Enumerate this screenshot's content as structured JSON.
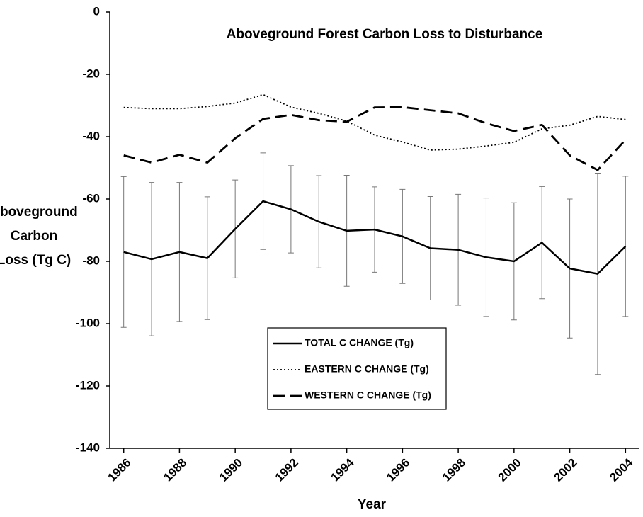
{
  "chart_data": {
    "type": "line",
    "title": "Aboveground Forest Carbon Loss to Disturbance",
    "x_label": "Year",
    "y_label": [
      "Aboveground",
      "Carbon",
      "Loss (Tg C)"
    ],
    "x": [
      1986,
      1987,
      1988,
      1989,
      1990,
      1991,
      1992,
      1993,
      1994,
      1995,
      1996,
      1997,
      1998,
      1999,
      2000,
      2001,
      2002,
      2003,
      2004
    ],
    "xlim": [
      1985.5,
      2004.5
    ],
    "xticks": [
      1986,
      1988,
      1990,
      1992,
      1994,
      1996,
      1998,
      2000,
      2002,
      2004
    ],
    "ylim": [
      -140,
      0
    ],
    "yticks": [
      0,
      -20,
      -40,
      -60,
      -80,
      -100,
      -120,
      -140
    ],
    "legend": "bottom-center",
    "series": [
      {
        "name": "TOTAL C CHANGE (Tg)",
        "color": "#000000",
        "style": "solid",
        "values": [
          -77,
          -79.3,
          -77,
          -79,
          -69.6,
          -60.7,
          -63.3,
          -67.3,
          -70.2,
          -69.8,
          -72,
          -75.8,
          -76.3,
          -78.7,
          -80,
          -74,
          -82.3,
          -84,
          -75.2
        ],
        "errors": [
          24.2,
          24.6,
          22.3,
          19.7,
          15.7,
          15.5,
          14,
          14.8,
          17.8,
          13.7,
          15.1,
          16.6,
          17.8,
          19,
          18.8,
          18,
          22.3,
          32.3,
          22.5
        ]
      },
      {
        "name": "EASTERN C CHANGE (Tg)",
        "color": "#000000",
        "style": "dotted",
        "values": [
          -30.6,
          -31,
          -31,
          -30.3,
          -29.2,
          -26.5,
          -30.5,
          -32.5,
          -35,
          -39.5,
          -41.7,
          -44.3,
          -44,
          -43,
          -41.8,
          -37.5,
          -36.3,
          -33.5,
          -34.5
        ]
      },
      {
        "name": "WESTERN C CHANGE (Tg)",
        "color": "#000000",
        "style": "dashed",
        "values": [
          -46,
          -48.3,
          -45.8,
          -48.3,
          -40.5,
          -34.3,
          -33,
          -34.7,
          -35.2,
          -30.6,
          -30.5,
          -31.5,
          -32.5,
          -35.7,
          -38.2,
          -36.2,
          -46,
          -50.7,
          -41
        ]
      }
    ]
  }
}
